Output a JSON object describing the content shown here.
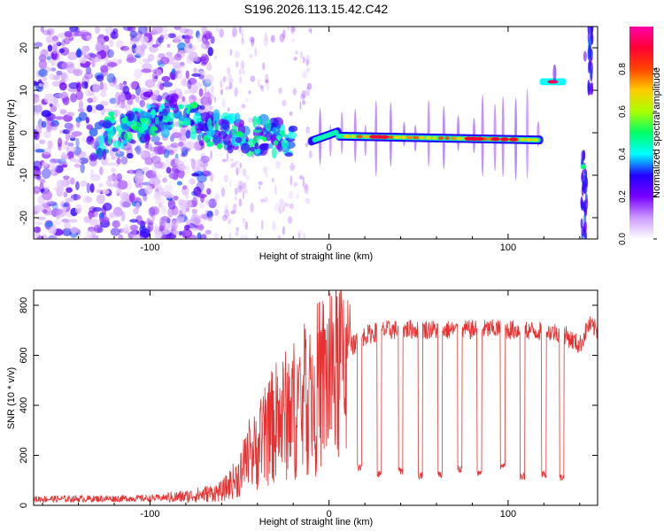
{
  "title": "S196.2026.113.15.42.C42",
  "chart_data": [
    {
      "type": "heatmap",
      "name": "spectrogram",
      "xlabel": "Height of straight line (km)",
      "ylabel": "Frequency (Hz)",
      "xlim": [
        -165,
        150
      ],
      "ylim": [
        -25,
        25
      ],
      "xticks": [
        -100,
        0,
        100
      ],
      "yticks": [
        -20,
        -10,
        0,
        10,
        20
      ],
      "colorbar": {
        "label": "Normalized spectral amplitude",
        "range": [
          0,
          1
        ],
        "ticks": [
          0.0,
          0.2,
          0.4,
          0.6,
          0.8
        ],
        "tick_labels": [
          "0.0",
          "0.2",
          "0.4",
          "0.6",
          "0.8"
        ],
        "colors": [
          "#ffffff",
          "#cc99ff",
          "#7700ff",
          "#2200ff",
          "#00ffff",
          "#00ff66",
          "#aaff00",
          "#ffcc00",
          "#ff4400",
          "#ff0033",
          "#ff00aa"
        ]
      },
      "features": [
        {
          "desc": "diffuse noise",
          "x": [
            -165,
            -70
          ],
          "y": [
            -25,
            25
          ],
          "amplitude": 0.25
        },
        {
          "desc": "rising blob track",
          "x": [
            -130,
            -20
          ],
          "y": [
            -2,
            6
          ],
          "amplitude": 0.5
        },
        {
          "desc": "main narrow line",
          "x": [
            -10,
            118
          ],
          "y": [
            -2,
            0
          ],
          "amplitude": 0.8
        },
        {
          "desc": "high segment",
          "x": [
            120,
            130
          ],
          "y": [
            12,
            12
          ],
          "amplitude": 0.9
        },
        {
          "desc": "far streaks",
          "x": [
            132,
            150
          ],
          "y": [
            -25,
            25
          ],
          "amplitude": 0.6
        }
      ]
    },
    {
      "type": "line",
      "name": "snr",
      "xlabel": "Height of straight line (km)",
      "ylabel": "SNR (10 * v/v)",
      "xlim": [
        -165,
        150
      ],
      "ylim": [
        0,
        860
      ],
      "xticks": [
        -100,
        0,
        100
      ],
      "yticks": [
        0,
        200,
        400,
        600,
        800
      ],
      "color": "#e83030",
      "envelope": {
        "x": [
          -165,
          -100,
          -80,
          -60,
          -50,
          -40,
          -30,
          -20,
          -10,
          0,
          10,
          20,
          30,
          50,
          70,
          90,
          110,
          130,
          140,
          145,
          150
        ],
        "y": [
          25,
          28,
          35,
          55,
          120,
          230,
          330,
          380,
          440,
          520,
          620,
          680,
          700,
          705,
          700,
          705,
          700,
          690,
          640,
          720,
          700
        ]
      },
      "spike_max": 820,
      "dips": [
        {
          "x": 17,
          "y": 140
        },
        {
          "x": 28,
          "y": 110
        },
        {
          "x": 40,
          "y": 120
        },
        {
          "x": 51,
          "y": 105
        },
        {
          "x": 62,
          "y": 110
        },
        {
          "x": 73,
          "y": 130
        },
        {
          "x": 84,
          "y": 115
        },
        {
          "x": 97,
          "y": 140
        },
        {
          "x": 108,
          "y": 100
        },
        {
          "x": 120,
          "y": 110
        },
        {
          "x": 130,
          "y": 95
        }
      ]
    }
  ]
}
